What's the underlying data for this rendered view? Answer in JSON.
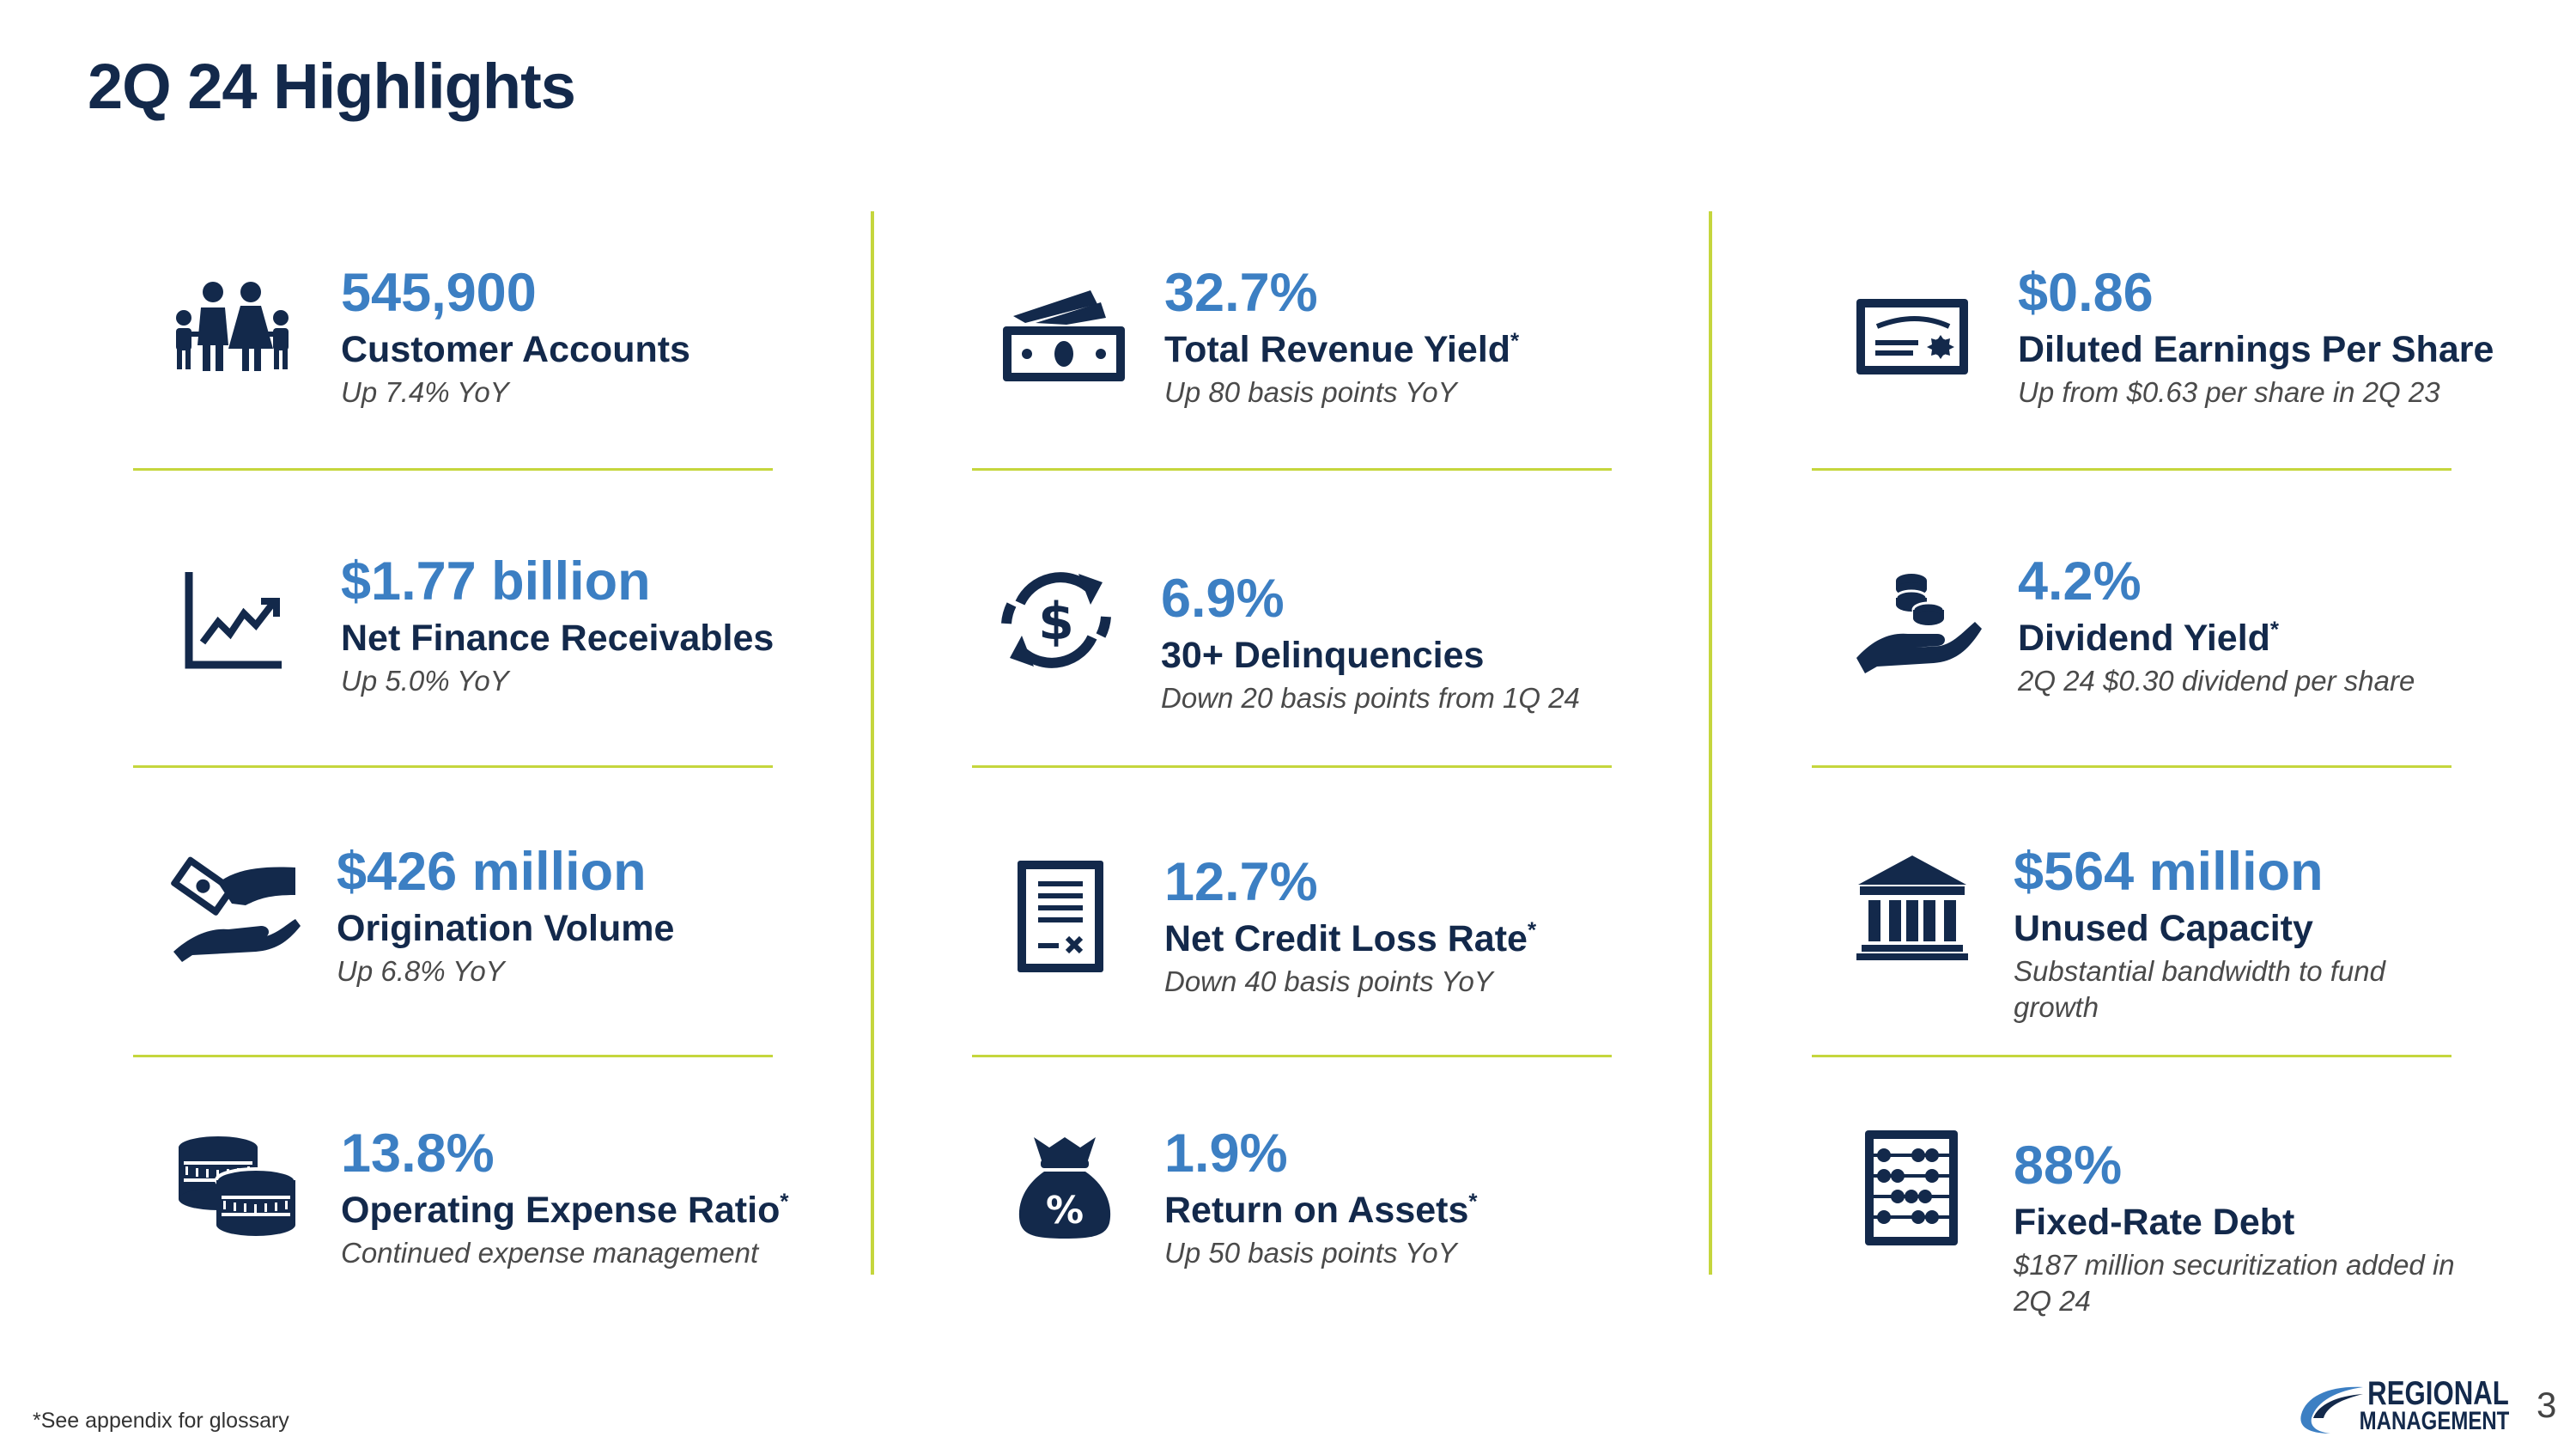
{
  "page_title": "2Q 24 Highlights",
  "colors": {
    "navy": "#13294b",
    "blue": "#3c7fc3",
    "divider": "#c5d63d"
  },
  "items": [
    {
      "icon": "family-icon",
      "value": "545,900",
      "label": "Customer Accounts",
      "asterisk": "",
      "sub": "Up 7.4% YoY"
    },
    {
      "icon": "growth-chart-icon",
      "value": "$1.77 billion",
      "label": "Net Finance Receivables",
      "asterisk": "",
      "sub": "Up 5.0% YoY"
    },
    {
      "icon": "cash-hand-icon",
      "value": "$426 million",
      "label": "Origination Volume",
      "asterisk": "",
      "sub": "Up 6.8% YoY"
    },
    {
      "icon": "coins-icon",
      "value": "13.8%",
      "label": "Operating Expense Ratio",
      "asterisk": "*",
      "sub": "Continued expense management"
    },
    {
      "icon": "banknotes-icon",
      "value": "32.7%",
      "label": "Total Revenue Yield",
      "asterisk": "*",
      "sub": "Up 80 basis points YoY"
    },
    {
      "icon": "dollar-cycle-icon",
      "value": "6.9%",
      "label": "30+ Delinquencies",
      "asterisk": "",
      "sub": "Down 20 basis points from 1Q 24"
    },
    {
      "icon": "document-icon",
      "value": "12.7%",
      "label": "Net Credit Loss Rate",
      "asterisk": "*",
      "sub": "Down 40 basis points YoY"
    },
    {
      "icon": "money-bag-icon",
      "value": "1.9%",
      "label": "Return on Assets",
      "asterisk": "*",
      "sub": "Up 50 basis points YoY"
    },
    {
      "icon": "certificate-icon",
      "value": "$0.86",
      "label": "Diluted Earnings Per Share",
      "asterisk": "",
      "sub": "Up from $0.63 per share in 2Q 23"
    },
    {
      "icon": "coins-in-hand-icon",
      "value": "4.2%",
      "label": "Dividend Yield",
      "asterisk": "*",
      "sub": "2Q 24 $0.30 dividend per share"
    },
    {
      "icon": "bank-icon",
      "value": "$564 million",
      "label": "Unused Capacity",
      "asterisk": "",
      "sub": "Substantial bandwidth to fund growth"
    },
    {
      "icon": "abacus-icon",
      "value": "88%",
      "label": "Fixed-Rate Debt",
      "asterisk": "",
      "sub": "$187 million securitization added in 2Q 24"
    }
  ],
  "footnote": "*See appendix for glossary",
  "logo": {
    "line1": "REGIONAL",
    "line2": "MANAGEMENT"
  },
  "page_number": "3"
}
